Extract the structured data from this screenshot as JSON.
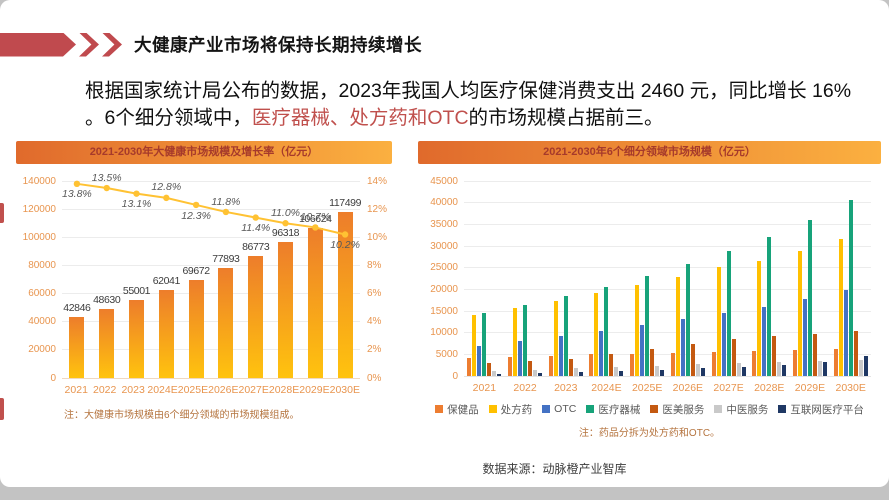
{
  "slide": {
    "title": "大健康产业市场将保持长期持续增长",
    "paragraph": {
      "part1": "根据国家统计局公布的数据，2023年我国人均医疗保健消费支出 2460 元，同比增长 16% 。6个细分领域中，",
      "highlight": "医疗器械、处方药和OTC",
      "part2": "的市场规模占据前三。"
    },
    "source": "数据来源：动脉橙产业智库"
  },
  "colors": {
    "accent_red": "#C0504D",
    "deco_red": "#C04A4E",
    "banner_gradient_start": "#E06A2C",
    "banner_gradient_end": "#FBB040",
    "banner_text": "#A63A2B",
    "bar_gradient_top": "#ED7D2B",
    "bar_gradient_bottom": "#FFC30E",
    "line_color": "#FFC233",
    "axis_label": "#E8954F",
    "grid_line": "#ECECEC"
  },
  "chart_data": [
    {
      "type": "bar",
      "title": "2021-2030年大健康市场规模及增长率（亿元）",
      "categories": [
        "2021",
        "2022",
        "2023",
        "2024E",
        "2025E",
        "2026E",
        "2027E",
        "2028E",
        "2029E",
        "2030E"
      ],
      "bar_series": {
        "name": "市场规模",
        "values": [
          42846,
          48630,
          55001,
          62041,
          69672,
          77893,
          86773,
          96318,
          106624,
          117499
        ]
      },
      "line_series": {
        "name": "增长率",
        "values_pct": [
          13.8,
          13.5,
          13.1,
          12.8,
          12.3,
          11.8,
          11.4,
          11.0,
          10.7,
          10.2
        ],
        "label_positions": [
          "below",
          "above",
          "below",
          "above",
          "below",
          "above",
          "below",
          "above",
          "above",
          "below"
        ]
      },
      "ylim_left": [
        0,
        140000
      ],
      "ytick_step_left": 20000,
      "ylim_right_pct": [
        0,
        14
      ],
      "ytick_step_right_pct": 2,
      "grid": true,
      "note": "注：大健康市场规模由6个细分领域的市场规模组成。"
    },
    {
      "type": "bar",
      "title": "2021-2030年6个细分领域市场规模（亿元）",
      "categories": [
        "2021",
        "2022",
        "2023",
        "2024E",
        "2025E",
        "2026E",
        "2027E",
        "2028E",
        "2029E",
        "2030E"
      ],
      "series": [
        {
          "name": "保健品",
          "color": "#ED7D31",
          "values": [
            4000,
            4300,
            4600,
            4900,
            5100,
            5300,
            5500,
            5700,
            5900,
            6100
          ]
        },
        {
          "name": "处方药",
          "color": "#FFC000",
          "values": [
            14000,
            15600,
            17300,
            19000,
            20900,
            22800,
            25100,
            26500,
            28800,
            31500
          ]
        },
        {
          "name": "OTC",
          "color": "#4472C4",
          "values": [
            6800,
            8000,
            9200,
            10400,
            11700,
            13100,
            14500,
            15800,
            17600,
            19800
          ]
        },
        {
          "name": "医疗器械",
          "color": "#17A37A",
          "values": [
            14400,
            16300,
            18300,
            20500,
            23000,
            25700,
            28700,
            32000,
            35800,
            40500
          ]
        },
        {
          "name": "医美服务",
          "color": "#C45911",
          "values": [
            2800,
            3300,
            3900,
            5100,
            6100,
            7400,
            8500,
            9200,
            9700,
            10200
          ]
        },
        {
          "name": "中医服务",
          "color": "#C9C9C9",
          "values": [
            1100,
            1400,
            1700,
            2000,
            2300,
            2600,
            2900,
            3100,
            3300,
            3600
          ]
        },
        {
          "name": "互联网医疗平台",
          "color": "#1F3864",
          "values": [
            400,
            600,
            800,
            1100,
            1400,
            1700,
            2100,
            2400,
            3100,
            4600
          ]
        }
      ],
      "ylim": [
        0,
        45000
      ],
      "ytick_step": 5000,
      "grid": true,
      "legend_position": "bottom",
      "note": "注：药品分拆为处方药和OTC。"
    }
  ]
}
